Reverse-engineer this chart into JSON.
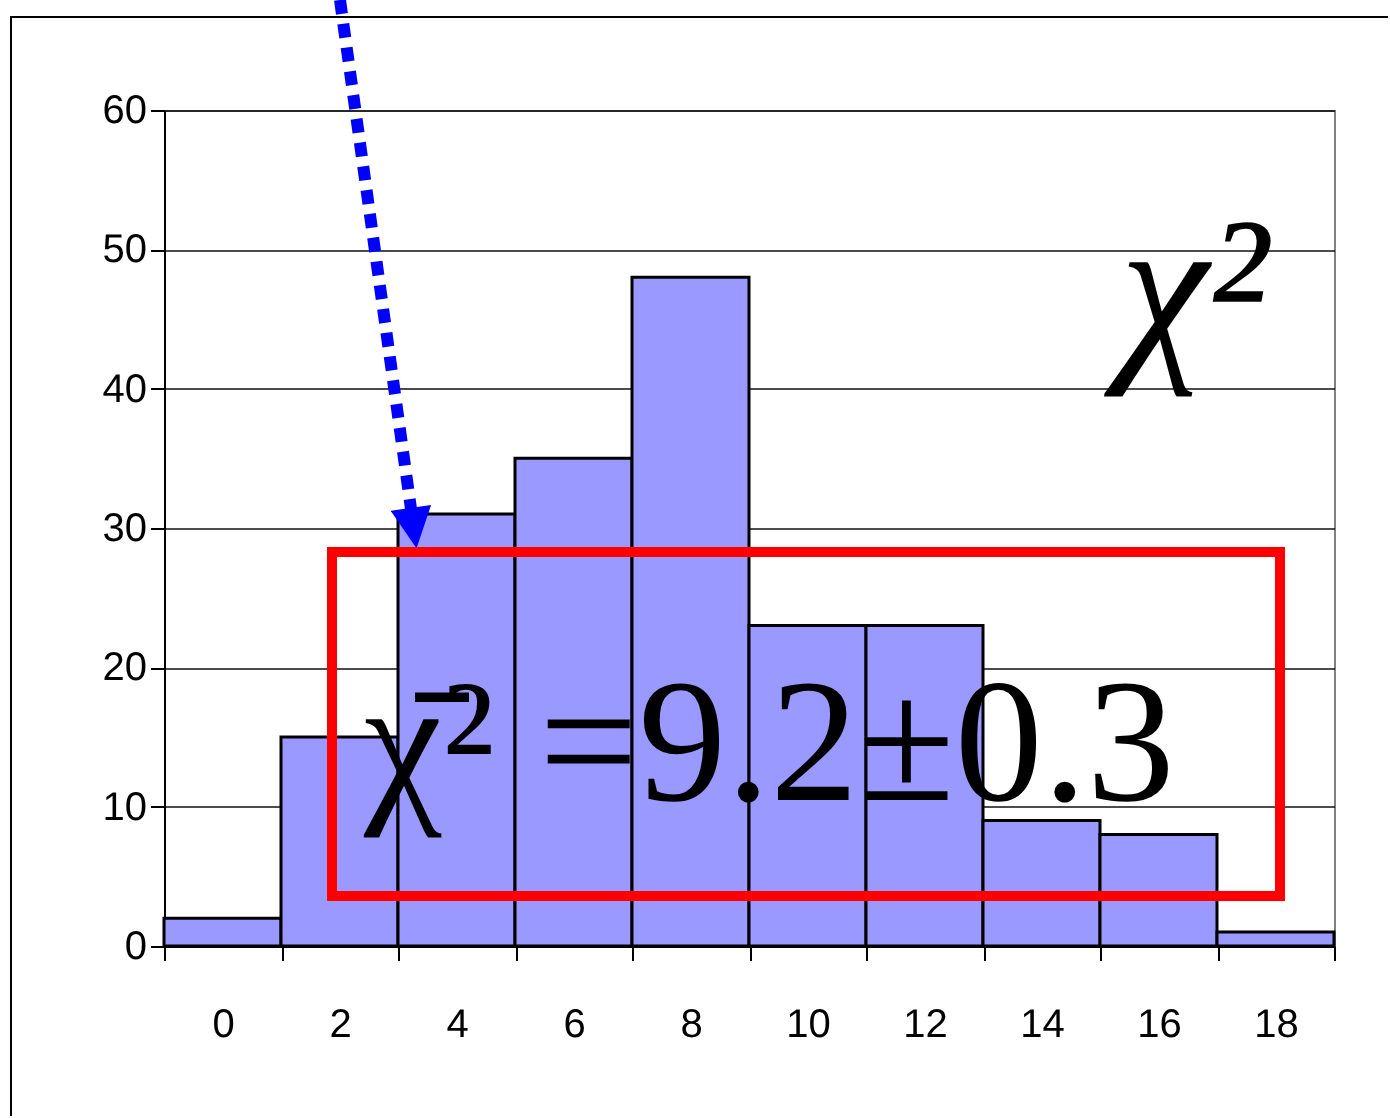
{
  "chart_data": {
    "type": "bar",
    "categories": [
      "0",
      "2",
      "4",
      "6",
      "8",
      "10",
      "12",
      "14",
      "16",
      "18"
    ],
    "values": [
      2,
      15,
      31,
      35,
      48,
      23,
      23,
      9,
      8,
      1
    ],
    "color": "#9999ff",
    "ylim": [
      0,
      60
    ],
    "yticks": [
      0,
      10,
      20,
      30,
      40,
      50,
      60
    ],
    "grid": "y",
    "annotations": [
      "χ²",
      "χ̄² =9.2±0.3"
    ]
  }
}
